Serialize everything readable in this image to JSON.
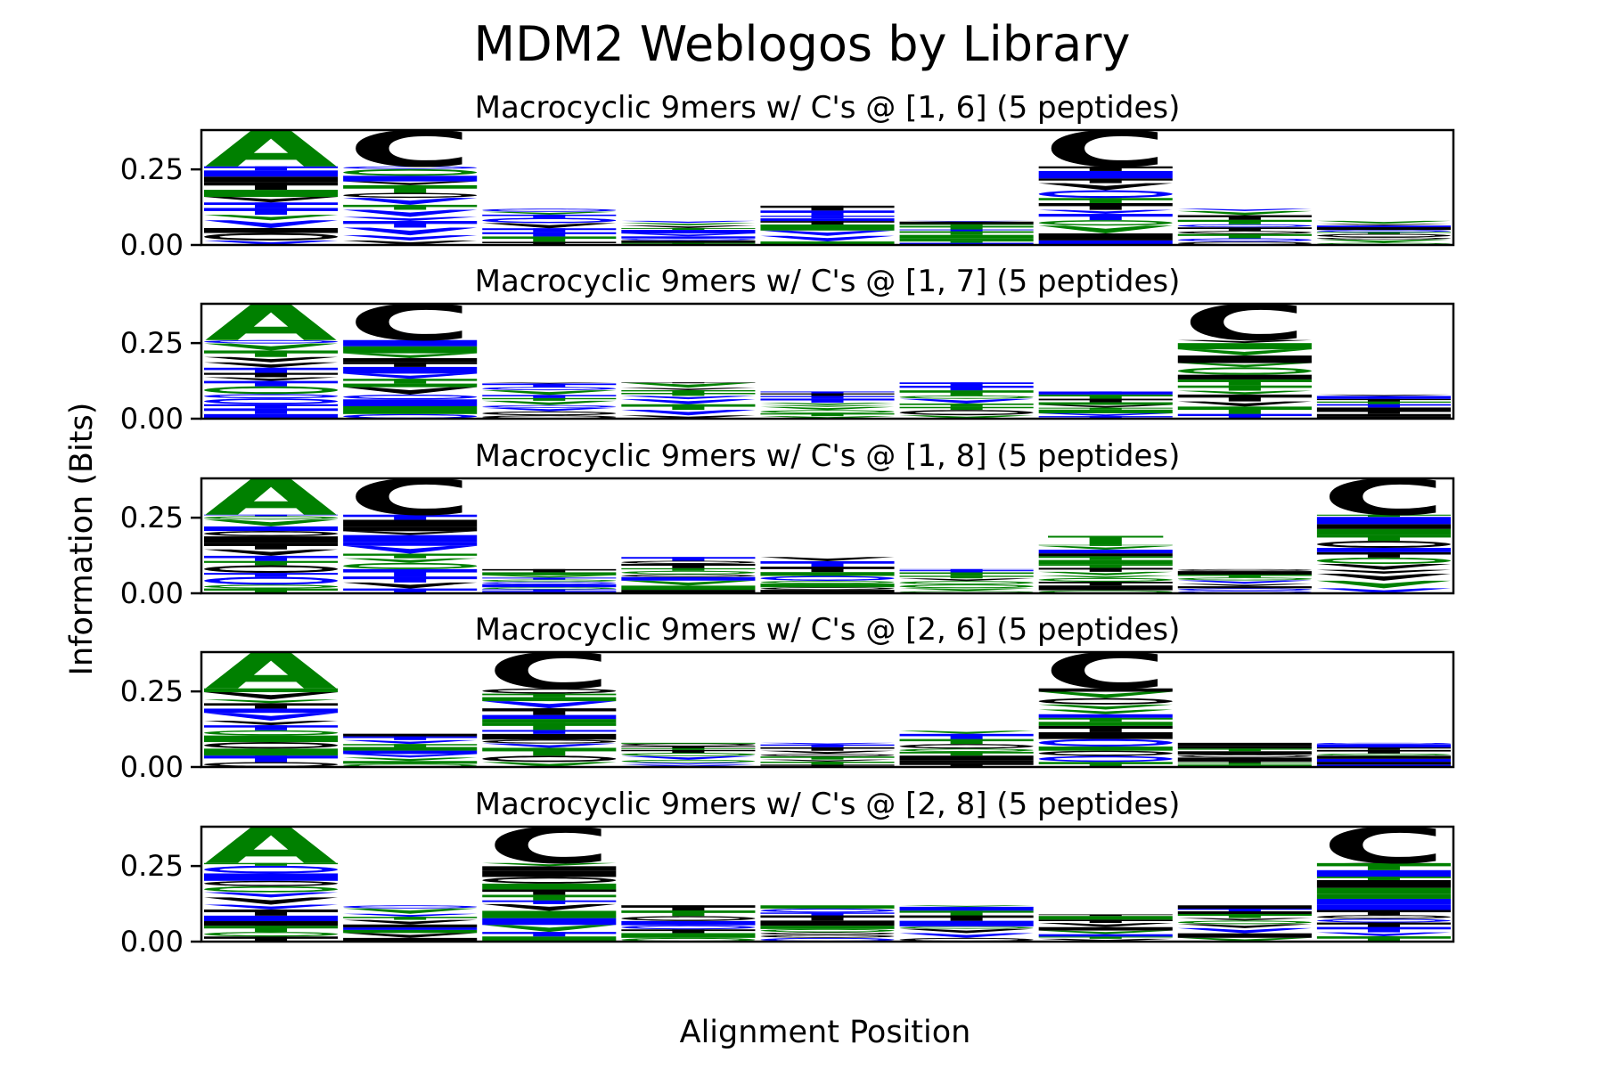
{
  "chart_data": {
    "type": "weblogo",
    "title": "MDM2 Weblogos by Library",
    "xlabel": "Alignment Position",
    "ylabel": "Information (Bits)",
    "ylim": [
      0,
      0.38
    ],
    "yticks": [
      "0.00",
      "0.25"
    ],
    "ytick_values": [
      0,
      0.25
    ],
    "colors": {
      "hydrophobic": "#000000",
      "polar": "#008000",
      "charged": "#0000ff"
    },
    "panels": [
      {
        "subtitle": "Macrocyclic 9mers w/ C's @ [1, 6] (5 peptides)",
        "columns": [
          {
            "total": 0.38,
            "top": "A",
            "top_color": "#008000",
            "top_height": 0.12
          },
          {
            "total": 0.38,
            "top": "C",
            "top_color": "#000000",
            "top_height": 0.12
          },
          {
            "total": 0.12,
            "top": "",
            "top_color": "",
            "top_height": 0
          },
          {
            "total": 0.08,
            "top": "",
            "top_color": "",
            "top_height": 0
          },
          {
            "total": 0.13,
            "top": "",
            "top_color": "",
            "top_height": 0
          },
          {
            "total": 0.08,
            "top": "",
            "top_color": "",
            "top_height": 0
          },
          {
            "total": 0.38,
            "top": "C",
            "top_color": "#000000",
            "top_height": 0.12
          },
          {
            "total": 0.12,
            "top": "",
            "top_color": "",
            "top_height": 0
          },
          {
            "total": 0.08,
            "top": "",
            "top_color": "",
            "top_height": 0
          }
        ]
      },
      {
        "subtitle": "Macrocyclic 9mers w/ C's @ [1, 7] (5 peptides)",
        "columns": [
          {
            "total": 0.38,
            "top": "A",
            "top_color": "#008000",
            "top_height": 0.12
          },
          {
            "total": 0.38,
            "top": "C",
            "top_color": "#000000",
            "top_height": 0.12
          },
          {
            "total": 0.12,
            "top": "",
            "top_color": "",
            "top_height": 0
          },
          {
            "total": 0.12,
            "top": "",
            "top_color": "",
            "top_height": 0
          },
          {
            "total": 0.09,
            "top": "",
            "top_color": "",
            "top_height": 0
          },
          {
            "total": 0.12,
            "top": "",
            "top_color": "",
            "top_height": 0
          },
          {
            "total": 0.09,
            "top": "",
            "top_color": "",
            "top_height": 0
          },
          {
            "total": 0.38,
            "top": "C",
            "top_color": "#000000",
            "top_height": 0.12
          },
          {
            "total": 0.08,
            "top": "",
            "top_color": "",
            "top_height": 0
          }
        ]
      },
      {
        "subtitle": "Macrocyclic 9mers w/ C's @ [1, 8] (5 peptides)",
        "columns": [
          {
            "total": 0.38,
            "top": "A",
            "top_color": "#008000",
            "top_height": 0.12
          },
          {
            "total": 0.38,
            "top": "C",
            "top_color": "#000000",
            "top_height": 0.12
          },
          {
            "total": 0.08,
            "top": "",
            "top_color": "",
            "top_height": 0
          },
          {
            "total": 0.12,
            "top": "",
            "top_color": "",
            "top_height": 0
          },
          {
            "total": 0.12,
            "top": "",
            "top_color": "",
            "top_height": 0
          },
          {
            "total": 0.08,
            "top": "",
            "top_color": "",
            "top_height": 0
          },
          {
            "total": 0.19,
            "top": "T",
            "top_color": "#008000",
            "top_height": 0.03
          },
          {
            "total": 0.08,
            "top": "",
            "top_color": "",
            "top_height": 0
          },
          {
            "total": 0.38,
            "top": "C",
            "top_color": "#000000",
            "top_height": 0.12
          }
        ]
      },
      {
        "subtitle": "Macrocyclic 9mers w/ C's @ [2, 6] (5 peptides)",
        "columns": [
          {
            "total": 0.38,
            "top": "A",
            "top_color": "#008000",
            "top_height": 0.12
          },
          {
            "total": 0.11,
            "top": "",
            "top_color": "",
            "top_height": 0
          },
          {
            "total": 0.38,
            "top": "C",
            "top_color": "#000000",
            "top_height": 0.12
          },
          {
            "total": 0.08,
            "top": "",
            "top_color": "",
            "top_height": 0
          },
          {
            "total": 0.08,
            "top": "",
            "top_color": "",
            "top_height": 0
          },
          {
            "total": 0.12,
            "top": "",
            "top_color": "",
            "top_height": 0
          },
          {
            "total": 0.38,
            "top": "C",
            "top_color": "#000000",
            "top_height": 0.12
          },
          {
            "total": 0.08,
            "top": "",
            "top_color": "",
            "top_height": 0
          },
          {
            "total": 0.08,
            "top": "",
            "top_color": "",
            "top_height": 0
          }
        ]
      },
      {
        "subtitle": "Macrocyclic 9mers w/ C's @ [2, 8] (5 peptides)",
        "columns": [
          {
            "total": 0.38,
            "top": "A",
            "top_color": "#008000",
            "top_height": 0.12
          },
          {
            "total": 0.12,
            "top": "",
            "top_color": "",
            "top_height": 0
          },
          {
            "total": 0.38,
            "top": "C",
            "top_color": "#000000",
            "top_height": 0.12
          },
          {
            "total": 0.12,
            "top": "",
            "top_color": "",
            "top_height": 0
          },
          {
            "total": 0.12,
            "top": "",
            "top_color": "",
            "top_height": 0
          },
          {
            "total": 0.12,
            "top": "",
            "top_color": "",
            "top_height": 0
          },
          {
            "total": 0.09,
            "top": "",
            "top_color": "",
            "top_height": 0
          },
          {
            "total": 0.12,
            "top": "",
            "top_color": "",
            "top_height": 0
          },
          {
            "total": 0.38,
            "top": "C",
            "top_color": "#000000",
            "top_height": 0.12
          }
        ]
      }
    ]
  }
}
